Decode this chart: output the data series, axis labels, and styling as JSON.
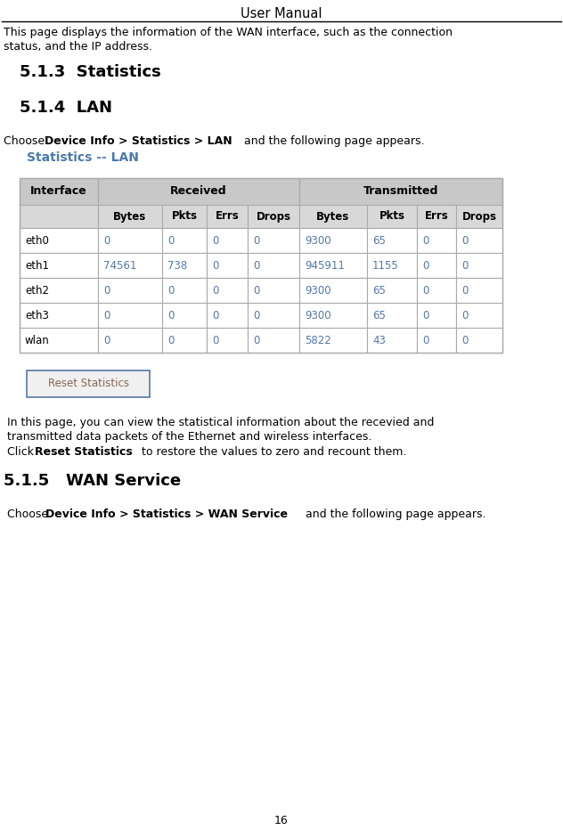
{
  "title": "User Manual",
  "page_number": "16",
  "bg_color": "#ffffff",
  "section_513_title": "5.1.3  Statistics",
  "section_514_title": "5.1.4  LAN",
  "section_515_title": "5.1.5   WAN Service",
  "intro_line1": "This page displays the information of the WAN interface, such as the connection",
  "intro_line2": "status, and the IP address.",
  "table_title": "Statistics -- LAN",
  "table_title_color": "#4a7aaa",
  "table_header_bg": "#c8c8c8",
  "table_subheader_bg": "#d8d8d8",
  "table_border_color": "#aaaaaa",
  "table_text_color": "#5577aa",
  "table_interface_color": "#000000",
  "table_data": [
    [
      "eth0",
      "0",
      "0",
      "0",
      "0",
      "9300",
      "65",
      "0",
      "0"
    ],
    [
      "eth1",
      "74561",
      "738",
      "0",
      "0",
      "945911",
      "1155",
      "0",
      "0"
    ],
    [
      "eth2",
      "0",
      "0",
      "0",
      "0",
      "9300",
      "65",
      "0",
      "0"
    ],
    [
      "eth3",
      "0",
      "0",
      "0",
      "0",
      "9300",
      "65",
      "0",
      "0"
    ],
    [
      "wlan",
      "0",
      "0",
      "0",
      "0",
      "5822",
      "43",
      "0",
      "0"
    ]
  ],
  "button_text": "Reset Statistics",
  "button_border_color": "#5577aa",
  "button_text_color": "#886655",
  "para_line1": "In this page, you can view the statistical information about the recevied and",
  "para_line2": "transmitted data packets of the Ethernet and wireless interfaces.",
  "click_pre": "Click ",
  "click_bold": "Reset Statistics",
  "click_post": " to restore the values to zero and recount them.",
  "wan_pre": "Choose ",
  "wan_bold": "Device Info > Statistics > WAN Service",
  "wan_post": " and the following page appears."
}
